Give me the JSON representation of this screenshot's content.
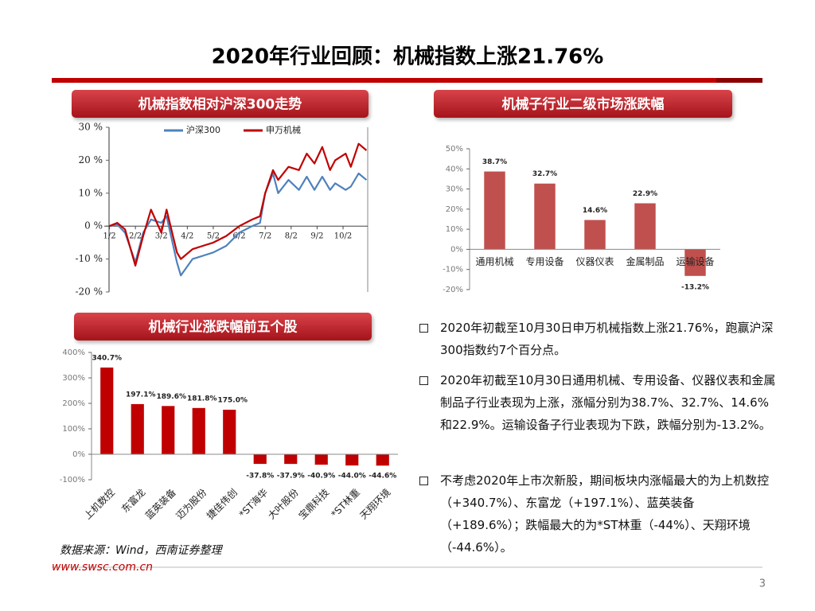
{
  "header": {
    "title": "2020年行业回顾：机械指数上涨21.76%"
  },
  "chart_data": [
    {
      "type": "line",
      "title": "机械指数相对沪深300走势",
      "x": [
        1,
        1.3,
        1.6,
        2.0,
        2.3,
        2.6,
        3.0,
        3.2,
        3.6,
        3.75,
        4.2,
        4.6,
        5.0,
        5.5,
        6.0,
        6.5,
        6.8,
        7.0,
        7.3,
        7.5,
        7.9,
        8.3,
        8.6,
        8.9,
        9.2,
        9.5,
        9.7,
        10.1,
        10.3,
        10.6,
        10.9
      ],
      "series": [
        {
          "name": "沪深300",
          "color": "#4f81bd",
          "values": [
            0,
            0.5,
            -2,
            -11,
            -2,
            2,
            1,
            3,
            -11,
            -15,
            -10,
            -9,
            -8,
            -6,
            -2,
            0,
            1,
            10,
            16,
            10,
            14,
            11,
            15,
            11,
            15,
            11,
            13,
            11,
            12,
            16,
            14
          ]
        },
        {
          "name": "申万机械",
          "color": "#c00000",
          "values": [
            0,
            1,
            -1,
            -12,
            -3,
            5,
            -2,
            5,
            -8,
            -10,
            -7,
            -6,
            -5,
            -3,
            0,
            2,
            3,
            10,
            17,
            14,
            18,
            17,
            22,
            19,
            24,
            17,
            20,
            22,
            18,
            25,
            23
          ]
        }
      ],
      "xlim": [
        0.8,
        10.95
      ],
      "xticks": [
        {
          "value": 1,
          "label": "1/2"
        },
        {
          "value": 2,
          "label": "2/2"
        },
        {
          "value": 3,
          "label": "3/2"
        },
        {
          "value": 4,
          "label": "4/2"
        },
        {
          "value": 5,
          "label": "5/2"
        },
        {
          "value": 6,
          "label": "6/2"
        },
        {
          "value": 7,
          "label": "7/2"
        },
        {
          "value": 8,
          "label": "8/2"
        },
        {
          "value": 9,
          "label": "9/2"
        },
        {
          "value": 10,
          "label": "10/2"
        }
      ],
      "ylim": [
        -20,
        30
      ],
      "yticks": [
        {
          "value": -20,
          "label": "-20 %"
        },
        {
          "value": -10,
          "label": "-10 %"
        },
        {
          "value": 0,
          "label": "0 %"
        },
        {
          "value": 10,
          "label": "10 %"
        },
        {
          "value": 20,
          "label": "20 %"
        },
        {
          "value": 30,
          "label": "30 %"
        }
      ]
    },
    {
      "type": "bar",
      "title": "机械子行业二级市场涨跌幅",
      "categories": [
        "通用机械",
        "专用设备",
        "仪器仪表",
        "金属制品",
        "运输设备"
      ],
      "values": [
        38.7,
        32.7,
        14.6,
        22.9,
        -13.2
      ],
      "value_labels": [
        "38.7%",
        "32.7%",
        "14.6%",
        "22.9%",
        "-13.2%"
      ],
      "color": "#c0504d",
      "ylim": [
        -20,
        50
      ],
      "yticks": [
        {
          "value": -20,
          "label": "-20%"
        },
        {
          "value": -10,
          "label": "-10%"
        },
        {
          "value": 0,
          "label": "0%"
        },
        {
          "value": 10,
          "label": "10%"
        },
        {
          "value": 20,
          "label": "20%"
        },
        {
          "value": 30,
          "label": "30%"
        },
        {
          "value": 40,
          "label": "40%"
        },
        {
          "value": 50,
          "label": "50%"
        }
      ]
    },
    {
      "type": "bar",
      "title": "机械行业涨跌幅前五个股",
      "categories": [
        "上机数控",
        "东富龙",
        "蓝英装备",
        "迈为股份",
        "捷佳伟创",
        "*ST海华",
        "大叶股份",
        "宝鼎科技",
        "*ST林重",
        "天翔环境"
      ],
      "values": [
        340.7,
        197.1,
        189.6,
        181.8,
        175.0,
        -37.8,
        -37.9,
        -40.9,
        -44.0,
        -44.6
      ],
      "value_labels": [
        "340.7%",
        "197.1%",
        "189.6%",
        "181.8%",
        "175.0%",
        "-37.8%",
        "-37.9%",
        "-40.9%",
        "-44.0%",
        "-44.6%"
      ],
      "color": "#c00000",
      "ylim": [
        -100,
        400
      ],
      "yticks": [
        {
          "value": -100,
          "label": "-100%"
        },
        {
          "value": 0,
          "label": "0%"
        },
        {
          "value": 100,
          "label": "100%"
        },
        {
          "value": 200,
          "label": "200%"
        },
        {
          "value": 300,
          "label": "300%"
        },
        {
          "value": 400,
          "label": "400%"
        }
      ]
    }
  ],
  "source": "数据来源：Wind，西南证券整理",
  "bullets": [
    "2020年初截至10月30日申万机械指数上涨21.76%，跑赢沪深300指数约7个百分点。",
    "2020年初截至10月30日通用机械、专用设备、仪器仪表和金属制品子行业表现为上涨，涨幅分别为38.7%、32.7%、14.6%和22.9%。运输设备子行业表现为下跌，跌幅分别为-13.2%。",
    "不考虑2020年上市次新股，期间板块内涨幅最大的为上机数控（+340.7%）、东富龙（+197.1%）、蓝英装备（+189.6%）；跌幅最大的为*ST林重（-44%）、天翔环境（-44.6%）。"
  ],
  "footer": {
    "website": "www.swsc.com.cn",
    "page": 3
  }
}
